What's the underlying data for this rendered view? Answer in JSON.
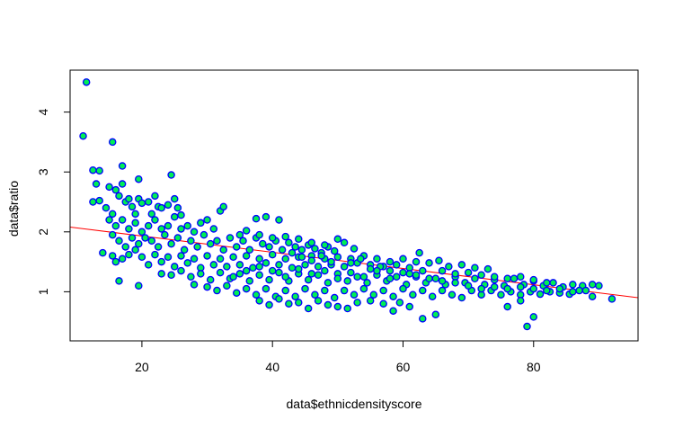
{
  "chart_data": {
    "type": "scatter",
    "title": "",
    "xlabel": "data$ethnicdensityscore",
    "ylabel": "data$ratio",
    "xlim": [
      9,
      96
    ],
    "ylim": [
      0.18,
      4.7
    ],
    "x_ticks": [
      20,
      40,
      60,
      80
    ],
    "y_ticks": [
      1,
      2,
      3,
      4
    ],
    "grid": false,
    "point_fill_color": "#00ee55",
    "point_edge_color": "#0000ff",
    "line_color": "#ff0000",
    "trend_line": {
      "x": [
        9,
        96
      ],
      "y": [
        2.08,
        0.9
      ]
    },
    "points": [
      [
        11.5,
        4.5
      ],
      [
        11,
        3.6
      ],
      [
        12.5,
        3.03
      ],
      [
        13.5,
        3.02
      ],
      [
        15.5,
        3.5
      ],
      [
        17,
        3.1
      ],
      [
        19.5,
        2.88
      ],
      [
        24.5,
        2.95
      ],
      [
        13,
        2.8
      ],
      [
        15,
        2.75
      ],
      [
        16,
        2.7
      ],
      [
        17,
        2.8
      ],
      [
        12.5,
        2.5
      ],
      [
        13.5,
        2.52
      ],
      [
        14.5,
        2.4
      ],
      [
        15.5,
        2.3
      ],
      [
        16.5,
        2.6
      ],
      [
        17.5,
        2.5
      ],
      [
        18,
        2.55
      ],
      [
        18.5,
        2.42
      ],
      [
        19,
        2.3
      ],
      [
        19.5,
        2.55
      ],
      [
        20,
        2.48
      ],
      [
        21,
        2.5
      ],
      [
        21.5,
        2.3
      ],
      [
        22,
        2.6
      ],
      [
        22.5,
        2.42
      ],
      [
        23,
        2.4
      ],
      [
        24,
        2.45
      ],
      [
        25,
        2.55
      ],
      [
        25.5,
        2.4
      ],
      [
        26,
        2.28
      ],
      [
        15,
        2.2
      ],
      [
        16,
        2.1
      ],
      [
        17,
        2.2
      ],
      [
        18,
        2.05
      ],
      [
        19,
        2.15
      ],
      [
        20,
        2.0
      ],
      [
        21,
        2.1
      ],
      [
        22,
        2.2
      ],
      [
        23,
        2.05
      ],
      [
        24,
        2.1
      ],
      [
        25,
        2.25
      ],
      [
        26,
        2.05
      ],
      [
        27,
        2.1
      ],
      [
        28,
        2.0
      ],
      [
        29,
        2.15
      ],
      [
        30,
        2.2
      ],
      [
        31,
        2.05
      ],
      [
        32,
        2.35
      ],
      [
        32.5,
        2.42
      ],
      [
        37.5,
        2.22
      ],
      [
        39,
        2.25
      ],
      [
        41,
        2.2
      ],
      [
        15.5,
        1.95
      ],
      [
        16.5,
        1.85
      ],
      [
        17.5,
        1.75
      ],
      [
        18.5,
        1.9
      ],
      [
        19.5,
        1.8
      ],
      [
        20.5,
        1.9
      ],
      [
        21.5,
        1.85
      ],
      [
        22.5,
        1.75
      ],
      [
        23.5,
        1.95
      ],
      [
        24.5,
        1.8
      ],
      [
        25.5,
        1.9
      ],
      [
        26.5,
        1.7
      ],
      [
        27.5,
        1.85
      ],
      [
        28.5,
        1.75
      ],
      [
        29.5,
        1.95
      ],
      [
        30.5,
        1.8
      ],
      [
        31.5,
        1.85
      ],
      [
        32.5,
        1.7
      ],
      [
        33.5,
        1.9
      ],
      [
        34.5,
        1.75
      ],
      [
        35.5,
        1.85
      ],
      [
        36.5,
        1.7
      ],
      [
        37.5,
        1.9
      ],
      [
        38.5,
        1.8
      ],
      [
        39.5,
        1.75
      ],
      [
        40.5,
        1.85
      ],
      [
        41.5,
        1.7
      ],
      [
        42.5,
        1.82
      ],
      [
        43.5,
        1.75
      ],
      [
        44.5,
        1.7
      ],
      [
        45.5,
        1.78
      ],
      [
        46.5,
        1.72
      ],
      [
        47.5,
        1.65
      ],
      [
        48.5,
        1.75
      ],
      [
        49.5,
        1.68
      ],
      [
        50,
        1.88
      ],
      [
        51,
        1.82
      ],
      [
        52.5,
        1.72
      ],
      [
        14,
        1.65
      ],
      [
        15.5,
        1.6
      ],
      [
        16,
        1.5
      ],
      [
        17,
        1.55
      ],
      [
        18,
        1.62
      ],
      [
        19,
        1.7
      ],
      [
        20,
        1.58
      ],
      [
        21,
        1.45
      ],
      [
        22,
        1.62
      ],
      [
        23,
        1.5
      ],
      [
        24,
        1.58
      ],
      [
        25,
        1.42
      ],
      [
        26,
        1.6
      ],
      [
        27,
        1.48
      ],
      [
        28,
        1.55
      ],
      [
        29,
        1.4
      ],
      [
        30,
        1.6
      ],
      [
        31,
        1.45
      ],
      [
        32,
        1.55
      ],
      [
        33,
        1.42
      ],
      [
        34,
        1.58
      ],
      [
        35,
        1.45
      ],
      [
        36,
        1.6
      ],
      [
        37,
        1.4
      ],
      [
        38,
        1.55
      ],
      [
        39,
        1.48
      ],
      [
        40,
        1.62
      ],
      [
        41,
        1.45
      ],
      [
        42,
        1.55
      ],
      [
        43,
        1.4
      ],
      [
        44,
        1.58
      ],
      [
        45,
        1.45
      ],
      [
        46,
        1.6
      ],
      [
        47,
        1.42
      ],
      [
        48,
        1.55
      ],
      [
        49,
        1.45
      ],
      [
        50,
        1.58
      ],
      [
        51,
        1.42
      ],
      [
        52,
        1.55
      ],
      [
        53,
        1.48
      ],
      [
        54,
        1.6
      ],
      [
        55,
        1.45
      ],
      [
        56,
        1.55
      ],
      [
        57,
        1.42
      ],
      [
        58,
        1.5
      ],
      [
        59,
        1.45
      ],
      [
        60,
        1.55
      ],
      [
        61,
        1.4
      ],
      [
        62,
        1.5
      ],
      [
        62.5,
        1.65
      ],
      [
        64,
        1.48
      ],
      [
        65.5,
        1.52
      ],
      [
        67,
        1.42
      ],
      [
        69,
        1.45
      ],
      [
        71,
        1.4
      ],
      [
        73,
        1.38
      ],
      [
        23,
        1.3
      ],
      [
        24.5,
        1.28
      ],
      [
        26,
        1.35
      ],
      [
        27.5,
        1.25
      ],
      [
        29,
        1.3
      ],
      [
        30.5,
        1.2
      ],
      [
        32,
        1.32
      ],
      [
        33.5,
        1.22
      ],
      [
        35,
        1.3
      ],
      [
        36.5,
        1.18
      ],
      [
        38,
        1.28
      ],
      [
        39.5,
        1.2
      ],
      [
        41,
        1.32
      ],
      [
        42.5,
        1.18
      ],
      [
        44,
        1.3
      ],
      [
        45.5,
        1.2
      ],
      [
        47,
        1.28
      ],
      [
        48.5,
        1.15
      ],
      [
        50,
        1.3
      ],
      [
        51.5,
        1.18
      ],
      [
        53,
        1.25
      ],
      [
        54.5,
        1.15
      ],
      [
        56,
        1.28
      ],
      [
        57.5,
        1.18
      ],
      [
        59,
        1.25
      ],
      [
        60.5,
        1.12
      ],
      [
        62,
        1.25
      ],
      [
        63.5,
        1.15
      ],
      [
        65,
        1.22
      ],
      [
        66.5,
        1.12
      ],
      [
        68,
        1.25
      ],
      [
        69.5,
        1.15
      ],
      [
        71,
        1.22
      ],
      [
        72.5,
        1.12
      ],
      [
        74,
        1.2
      ],
      [
        75.5,
        1.1
      ],
      [
        77,
        1.22
      ],
      [
        78.5,
        1.12
      ],
      [
        80,
        1.18
      ],
      [
        81.5,
        1.1
      ],
      [
        83,
        1.15
      ],
      [
        84.5,
        1.08
      ],
      [
        86,
        1.12
      ],
      [
        87.5,
        1.1
      ],
      [
        89,
        1.12
      ],
      [
        90,
        1.1
      ],
      [
        16.5,
        1.18
      ],
      [
        19.5,
        1.1
      ],
      [
        28,
        1.12
      ],
      [
        30,
        1.08
      ],
      [
        31.5,
        1.02
      ],
      [
        33,
        1.1
      ],
      [
        34.5,
        0.98
      ],
      [
        36,
        1.05
      ],
      [
        37.5,
        0.95
      ],
      [
        39,
        1.05
      ],
      [
        40.5,
        0.92
      ],
      [
        42,
        1.02
      ],
      [
        43.5,
        0.92
      ],
      [
        45,
        1.05
      ],
      [
        46.5,
        0.95
      ],
      [
        48,
        1.02
      ],
      [
        49.5,
        0.9
      ],
      [
        51,
        1.02
      ],
      [
        52.5,
        0.95
      ],
      [
        54,
        1.05
      ],
      [
        55.5,
        0.95
      ],
      [
        57,
        1.02
      ],
      [
        58.5,
        0.92
      ],
      [
        60,
        1.05
      ],
      [
        61.5,
        0.95
      ],
      [
        63,
        1.02
      ],
      [
        64.5,
        0.92
      ],
      [
        66,
        1.02
      ],
      [
        67.5,
        0.95
      ],
      [
        69,
        0.9
      ],
      [
        70.5,
        1.02
      ],
      [
        72,
        0.95
      ],
      [
        73.5,
        1.02
      ],
      [
        75,
        0.95
      ],
      [
        76.5,
        1.0
      ],
      [
        78,
        0.95
      ],
      [
        79.5,
        1.0
      ],
      [
        81,
        0.96
      ],
      [
        82.5,
        1.0
      ],
      [
        84,
        0.98
      ],
      [
        85.5,
        0.96
      ],
      [
        87,
        1.02
      ],
      [
        38,
        0.85
      ],
      [
        39.5,
        0.78
      ],
      [
        41,
        0.88
      ],
      [
        42.5,
        0.8
      ],
      [
        44,
        0.82
      ],
      [
        45.5,
        0.72
      ],
      [
        47,
        0.85
      ],
      [
        48.5,
        0.78
      ],
      [
        50,
        0.75
      ],
      [
        51.5,
        0.72
      ],
      [
        53,
        0.82
      ],
      [
        55,
        0.85
      ],
      [
        57,
        0.8
      ],
      [
        58.5,
        0.68
      ],
      [
        59.5,
        0.82
      ],
      [
        61,
        0.75
      ],
      [
        63,
        0.55
      ],
      [
        65,
        0.62
      ],
      [
        76,
        0.75
      ],
      [
        78,
        0.85
      ],
      [
        80,
        0.58
      ],
      [
        79,
        0.42
      ],
      [
        89,
        0.92
      ],
      [
        92,
        0.88
      ],
      [
        43,
        1.65
      ],
      [
        44.5,
        1.58
      ],
      [
        46,
        1.52
      ],
      [
        47.5,
        1.6
      ],
      [
        49,
        1.5
      ],
      [
        52,
        1.48
      ],
      [
        53.5,
        1.55
      ],
      [
        55,
        1.38
      ],
      [
        56.5,
        1.42
      ],
      [
        58,
        1.35
      ],
      [
        61,
        1.3
      ],
      [
        63,
        1.35
      ],
      [
        66,
        1.35
      ],
      [
        68,
        1.3
      ],
      [
        70,
        1.32
      ],
      [
        72,
        1.28
      ],
      [
        74,
        1.25
      ],
      [
        76,
        1.22
      ],
      [
        78,
        1.25
      ],
      [
        80,
        1.2
      ],
      [
        82,
        1.15
      ],
      [
        35,
        1.95
      ],
      [
        36,
        2.02
      ],
      [
        38,
        1.95
      ],
      [
        40,
        1.9
      ],
      [
        42,
        1.92
      ],
      [
        44,
        1.88
      ],
      [
        46,
        1.82
      ],
      [
        48,
        1.78
      ],
      [
        34,
        1.25
      ],
      [
        36,
        1.35
      ],
      [
        38,
        1.42
      ],
      [
        40,
        1.35
      ],
      [
        42,
        1.25
      ],
      [
        44,
        1.38
      ],
      [
        46,
        1.3
      ],
      [
        48,
        1.35
      ],
      [
        50,
        1.22
      ],
      [
        52,
        1.32
      ],
      [
        54,
        1.25
      ],
      [
        56,
        1.35
      ],
      [
        58,
        1.22
      ],
      [
        60,
        1.32
      ],
      [
        62,
        1.28
      ],
      [
        64,
        1.22
      ],
      [
        66,
        1.18
      ],
      [
        68,
        1.15
      ],
      [
        70,
        1.1
      ],
      [
        72,
        1.05
      ],
      [
        74,
        1.08
      ],
      [
        76,
        1.05
      ],
      [
        78,
        1.08
      ],
      [
        80,
        1.05
      ],
      [
        82,
        1.02
      ],
      [
        84,
        1.05
      ],
      [
        86,
        1.0
      ],
      [
        88,
        1.02
      ]
    ]
  }
}
